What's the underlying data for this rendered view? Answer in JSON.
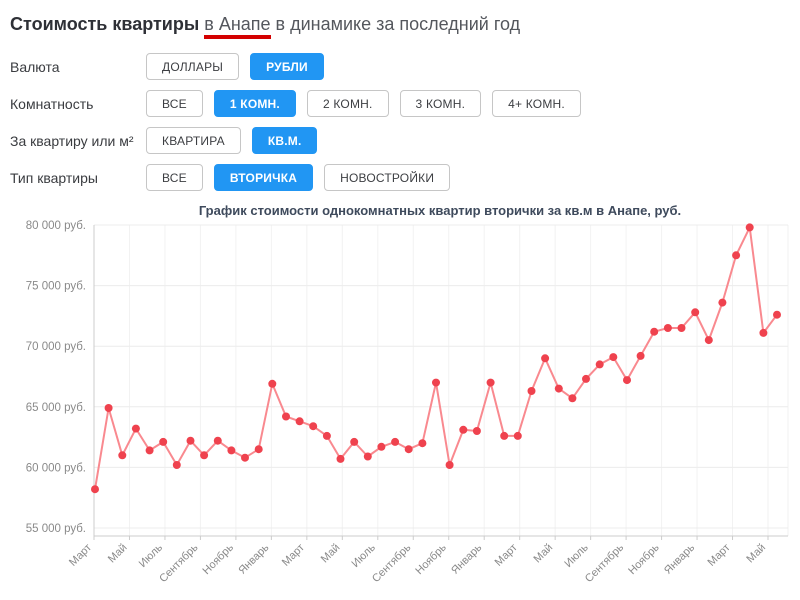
{
  "title": {
    "bold": "Стоимость квартиры",
    "underlined": "в Анапе",
    "rest": "в динамике за последний год",
    "underline_color": "#d40000"
  },
  "filters": [
    {
      "label": "Валюта",
      "options": [
        {
          "label": "ДОЛЛАРЫ",
          "selected": false
        },
        {
          "label": "РУБЛИ",
          "selected": true
        }
      ]
    },
    {
      "label": "Комнатность",
      "options": [
        {
          "label": "ВСЕ",
          "selected": false
        },
        {
          "label": "1 КОМН.",
          "selected": true
        },
        {
          "label": "2 КОМН.",
          "selected": false
        },
        {
          "label": "3 КОМН.",
          "selected": false
        },
        {
          "label": "4+ КОМН.",
          "selected": false
        }
      ]
    },
    {
      "label": "За квартиру или м²",
      "options": [
        {
          "label": "КВАРТИРА",
          "selected": false
        },
        {
          "label": "КВ.М.",
          "selected": true
        }
      ]
    },
    {
      "label": "Тип квартиры",
      "options": [
        {
          "label": "ВСЕ",
          "selected": false
        },
        {
          "label": "ВТОРИЧКА",
          "selected": true
        },
        {
          "label": "НОВОСТРОЙКИ",
          "selected": false
        }
      ]
    }
  ],
  "chart_data": {
    "type": "line",
    "title": "График стоимости однокомнатных квартир вторички за кв.м в Анапе, руб.",
    "ylim": [
      55000,
      80000
    ],
    "y_step": 5000,
    "y_tick_labels": [
      "80 000 руб.",
      "75 000 руб.",
      "70 000 руб.",
      "65 000 руб.",
      "60 000 руб.",
      "55 000 руб."
    ],
    "x_tick_labels": [
      "Март",
      "Май",
      "Июль",
      "Сентябрь",
      "Ноябрь",
      "Январь",
      "Март",
      "Май",
      "Июль",
      "Сентябрь",
      "Ноябрь",
      "Январь",
      "Март",
      "Май",
      "Июль",
      "Сентябрь",
      "Ноябрь",
      "Январь",
      "Март",
      "Май"
    ],
    "values": [
      58200,
      64900,
      61000,
      63200,
      61400,
      62100,
      60200,
      62200,
      61000,
      62200,
      61400,
      60800,
      61500,
      66900,
      64200,
      63800,
      63400,
      62600,
      60700,
      62100,
      60900,
      61700,
      62100,
      61500,
      62000,
      67000,
      60200,
      63100,
      63000,
      67000,
      62600,
      62600,
      66300,
      69000,
      66500,
      65700,
      67300,
      68500,
      69100,
      67200,
      69200,
      71200,
      71500,
      71500,
      72800,
      70500,
      73600,
      77500,
      79800,
      71100,
      72600
    ],
    "grid": true,
    "legend": false,
    "colors": {
      "line": "#f9898f",
      "marker": "#ef424e",
      "grid": "#ececec",
      "grid_vertical": "#f2f2f2",
      "axis": "#cccccc",
      "tick_text": "#8a8a8a",
      "title": "#3e4a5c"
    }
  }
}
